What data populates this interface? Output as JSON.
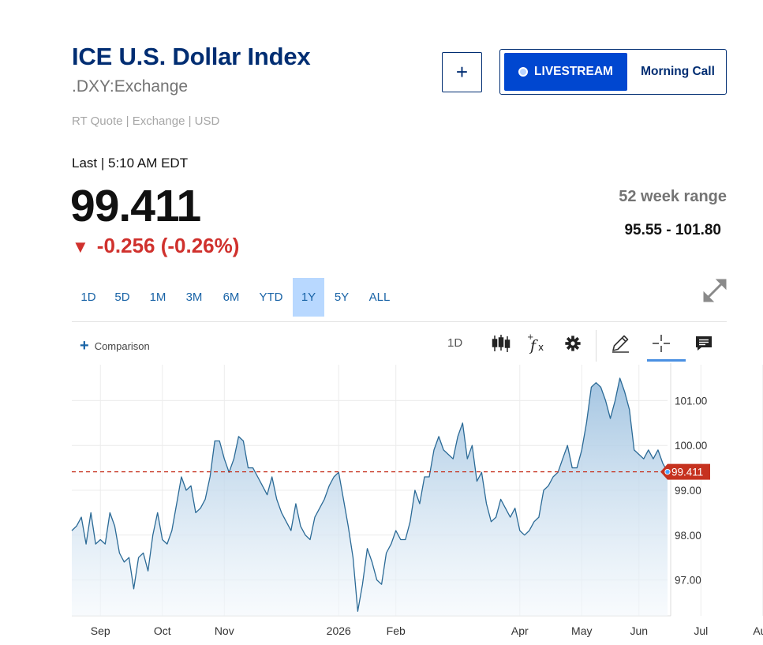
{
  "header": {
    "title": "ICE U.S. Dollar Index",
    "symbol": ".DXY:Exchange",
    "quote_meta": "RT Quote | Exchange | USD",
    "add_label": "+",
    "livestream_label": "LIVESTREAM",
    "morning_call_label": "Morning Call"
  },
  "quote": {
    "last_label": "Last | 5:10 AM EDT",
    "price": "99.411",
    "change_arrow": "▼",
    "change": "-0.256 (-0.26%)",
    "range_label": "52 week range",
    "range_value": "95.55 - 101.80"
  },
  "range_tabs": [
    {
      "label": "1D",
      "active": false
    },
    {
      "label": "5D",
      "active": false
    },
    {
      "label": "1M",
      "active": false
    },
    {
      "label": "3M",
      "active": false
    },
    {
      "label": "6M",
      "active": false
    },
    {
      "label": "YTD",
      "active": false
    },
    {
      "label": "1Y",
      "active": true
    },
    {
      "label": "5Y",
      "active": false
    },
    {
      "label": "ALL",
      "active": false
    }
  ],
  "toolbar": {
    "comparison_label": "Comparison",
    "interval_label": "1D",
    "icons": [
      "candlestick-icon",
      "function-icon",
      "settings-gear-icon",
      "draw-pencil-icon",
      "crosshair-icon",
      "comment-icon"
    ]
  },
  "colors": {
    "brand_navy": "#002d72",
    "livestream_blue": "#0047d0",
    "negative_red": "#d0312d",
    "line_blue": "#2b6a96",
    "area_fill_top": "#9fc2e0",
    "last_price_tag": "#c6321f",
    "active_tab": "#b8d8ff"
  },
  "chart_data": {
    "type": "area",
    "last_value": 99.411,
    "last_value_label": "99.411",
    "ylim": [
      96.2,
      101.8
    ],
    "y_ticks": [
      97.0,
      98.0,
      99.0,
      100.0,
      101.0
    ],
    "y_tick_labels": [
      "97.00",
      "98.00",
      "99.00",
      "100.00",
      "101.00"
    ],
    "x_tick_labels": [
      "Sep",
      "Oct",
      "Nov",
      "2026",
      "Feb",
      "Apr",
      "May",
      "Jun",
      "Jul",
      "Aug"
    ],
    "x_tick_index": [
      6,
      19,
      32,
      56,
      68,
      94,
      107,
      119,
      132,
      145
    ],
    "gridlines": true,
    "series": [
      {
        "values": [
          98.1,
          98.2,
          98.4,
          97.8,
          98.5,
          97.8,
          97.9,
          97.8,
          98.5,
          98.2,
          97.6,
          97.4,
          97.5,
          96.8,
          97.5,
          97.6,
          97.2,
          98.0,
          98.5,
          97.9,
          97.8,
          98.1,
          98.7,
          99.3,
          99.0,
          99.1,
          98.5,
          98.6,
          98.8,
          99.3,
          100.1,
          100.1,
          99.7,
          99.4,
          99.7,
          100.2,
          100.1,
          99.5,
          99.5,
          99.3,
          99.1,
          98.9,
          99.3,
          98.8,
          98.5,
          98.3,
          98.1,
          98.7,
          98.2,
          98.0,
          97.9,
          98.4,
          98.6,
          98.8,
          99.1,
          99.3,
          99.4,
          98.8,
          98.2,
          97.5,
          96.3,
          96.9,
          97.7,
          97.4,
          97.0,
          96.9,
          97.6,
          97.8,
          98.1,
          97.9,
          97.9,
          98.3,
          99.0,
          98.7,
          99.3,
          99.3,
          99.9,
          100.2,
          99.9,
          99.8,
          99.7,
          100.2,
          100.5,
          99.7,
          100.0,
          99.2,
          99.4,
          98.7,
          98.3,
          98.4,
          98.8,
          98.6,
          98.4,
          98.6,
          98.1,
          98.0,
          98.1,
          98.3,
          98.4,
          99.0,
          99.1,
          99.3,
          99.4,
          99.7,
          100.0,
          99.5,
          99.5,
          99.9,
          100.5,
          101.3,
          101.4,
          101.3,
          101.0,
          100.6,
          101.0,
          101.5,
          101.2,
          100.8,
          99.9,
          99.8,
          99.7,
          99.9,
          99.7,
          99.9,
          99.6,
          99.411
        ]
      }
    ]
  }
}
